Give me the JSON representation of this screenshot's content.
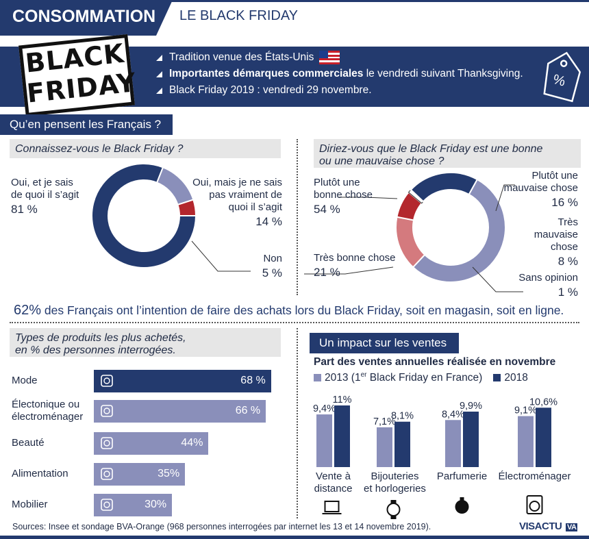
{
  "header": {
    "category": "CONSOMMATION",
    "title": "LE BLACK FRIDAY"
  },
  "logo": {
    "line1": "BLACK",
    "line2": "FRIDAY"
  },
  "banner": {
    "items": [
      {
        "text": "Tradition venue des États-Unis"
      },
      {
        "bold": "Importantes démarques commerciales",
        "rest": " le vendredi suivant Thanksgiving."
      },
      {
        "text": "Black Friday 2019 : vendredi 29 novembre."
      }
    ],
    "tag_symbol": "%"
  },
  "section1": {
    "title": "Qu’en pensent les Français ?"
  },
  "colors": {
    "navy": "#233a6e",
    "lavender": "#8a8fba",
    "red": "#b3272d",
    "pink": "#d47a7e"
  },
  "chart_data": [
    {
      "type": "pie",
      "title": "Connaissez-vous le Black Friday ?",
      "slices": [
        {
          "label_lines": [
            "Oui, et je sais",
            "de quoi il s’agit"
          ],
          "pct_text": "81 %",
          "value": 81
        },
        {
          "label_lines": [
            "Oui, mais je ne sais",
            "pas vraiment de",
            "quoi il s’agit"
          ],
          "pct_text": "14 %",
          "value": 14
        },
        {
          "label_lines": [
            "Non"
          ],
          "pct_text": "5 %",
          "value": 5
        }
      ]
    },
    {
      "type": "pie",
      "title_lines": [
        "Diriez-vous que le Black Friday est une bonne",
        "ou une mauvaise chose ?"
      ],
      "slices": [
        {
          "label_lines": [
            "Plutôt une",
            "bonne chose"
          ],
          "pct_text": "54 %",
          "value": 54
        },
        {
          "label_lines": [
            "Plutôt une",
            "mauvaise chose"
          ],
          "pct_text": "16 %",
          "value": 16
        },
        {
          "label_lines": [
            "Très",
            "mauvaise",
            "chose"
          ],
          "pct_text": "8 %",
          "value": 8
        },
        {
          "label_lines": [
            "Sans opinion"
          ],
          "pct_text": "1 %",
          "value": 1
        },
        {
          "label_lines": [
            "Très bonne chose"
          ],
          "pct_text": "21 %",
          "value": 21
        }
      ]
    },
    {
      "type": "bar",
      "orientation": "horizontal",
      "title_lines": [
        "Types de produits les plus achetés,",
        "en % des personnes interrogées."
      ],
      "categories": [
        {
          "lines": [
            "Mode"
          ],
          "icon": "tshirt-icon"
        },
        {
          "lines": [
            "Électonique ou",
            "électroménager"
          ],
          "icon": "washing-machine-icon"
        },
        {
          "lines": [
            "Beauté"
          ],
          "icon": "perfume-icon"
        },
        {
          "lines": [
            "Alimentation"
          ],
          "icon": "cutlery-icon"
        },
        {
          "lines": [
            "Mobilier"
          ],
          "icon": "sofa-icon"
        }
      ],
      "values": [
        68,
        66,
        44,
        35,
        30
      ],
      "value_labels": [
        "68 %",
        "66 %",
        "44%",
        "35%",
        "30%"
      ],
      "xlim": [
        0,
        72
      ]
    },
    {
      "type": "bar",
      "title": "Un impact sur les ventes",
      "subtitle": "Part des ventes annuelles réalisée en novembre",
      "legend": [
        {
          "pre": "2013 (1",
          "sup": "er",
          "post": " Black Friday en France)"
        },
        {
          "pre": "2018",
          "sup": "",
          "post": ""
        }
      ],
      "categories": [
        {
          "lines": [
            "Vente à",
            "distance"
          ],
          "icon": "laptop-icon"
        },
        {
          "lines": [
            "Bijouteries",
            "et horlogeries"
          ],
          "icon": "watch-icon"
        },
        {
          "lines": [
            "Parfumerie"
          ],
          "icon": "perfume-icon"
        },
        {
          "lines": [
            "Électroménager"
          ],
          "icon": "washing-machine-icon"
        }
      ],
      "series": [
        {
          "values": [
            9.4,
            7.1,
            8.4,
            9.1
          ],
          "labels": [
            "9,4%",
            "7,1%",
            "8,4%",
            "9,1%"
          ]
        },
        {
          "values": [
            11,
            8.1,
            9.9,
            10.6
          ],
          "labels": [
            "11%",
            "8,1%",
            "9,9%",
            "10,6%"
          ]
        }
      ],
      "ylim": [
        0,
        11
      ]
    }
  ],
  "statement": {
    "bold": "62%",
    "rest": " des Français ont l’intention de faire des achats lors du Black Friday, soit en magasin, soit en ligne."
  },
  "footer": {
    "source": "Sources: Insee et sondage BVA-Orange (968 personnes interrogées par internet les 13 et 14 novembre 2019).",
    "brand_left": "VISACTU",
    "brand_right": "VA"
  }
}
